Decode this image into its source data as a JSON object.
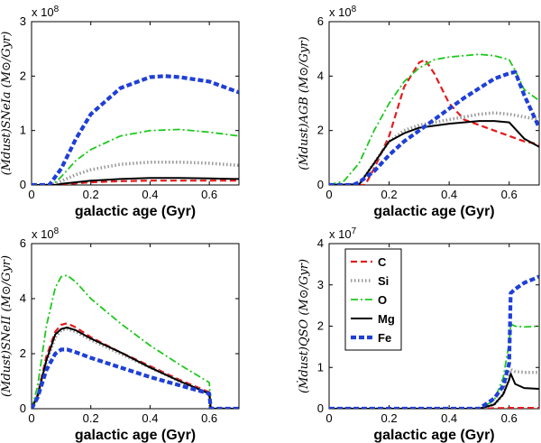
{
  "chart_data": [
    {
      "type": "line",
      "panel": "top-left",
      "ylabel": "(Ṁdust)SNeIa (M⊙/Gyr)",
      "xlabel": "galactic age (Gyr)",
      "xlim": [
        0,
        0.7
      ],
      "ylim": [
        0,
        3
      ],
      "multiplier": "x 10",
      "multiplier_exp": "8",
      "xticks": [
        "0",
        "0.2",
        "0.4",
        "0.6"
      ],
      "yticks": [
        "0",
        "1",
        "2",
        "3"
      ],
      "series": [
        {
          "name": "C",
          "color": "#e41a1c",
          "dash": "dash",
          "x": [
            0,
            0.08,
            0.1,
            0.2,
            0.3,
            0.4,
            0.5,
            0.6,
            0.7
          ],
          "y": [
            0,
            0,
            0.01,
            0.05,
            0.07,
            0.08,
            0.08,
            0.08,
            0.08
          ]
        },
        {
          "name": "Si",
          "color": "#999999",
          "dash": "dot",
          "x": [
            0,
            0.07,
            0.1,
            0.15,
            0.2,
            0.3,
            0.4,
            0.5,
            0.6,
            0.7
          ],
          "y": [
            0,
            0,
            0.07,
            0.19,
            0.28,
            0.38,
            0.42,
            0.42,
            0.4,
            0.36
          ]
        },
        {
          "name": "O",
          "color": "#1ec81e",
          "dash": "dashdot",
          "x": [
            0,
            0.07,
            0.1,
            0.15,
            0.2,
            0.3,
            0.4,
            0.5,
            0.6,
            0.7
          ],
          "y": [
            0,
            0,
            0.15,
            0.45,
            0.65,
            0.9,
            1.0,
            1.02,
            0.97,
            0.9
          ]
        },
        {
          "name": "Mg",
          "color": "#000000",
          "dash": "solid",
          "x": [
            0,
            0.08,
            0.1,
            0.2,
            0.3,
            0.4,
            0.5,
            0.6,
            0.7
          ],
          "y": [
            0,
            0,
            0.02,
            0.08,
            0.11,
            0.13,
            0.13,
            0.12,
            0.11
          ]
        },
        {
          "name": "Fe",
          "color": "#1f3fd6",
          "dash": "fe",
          "x": [
            0,
            0.06,
            0.1,
            0.15,
            0.2,
            0.3,
            0.4,
            0.45,
            0.5,
            0.6,
            0.7
          ],
          "y": [
            0,
            0,
            0.3,
            0.85,
            1.3,
            1.78,
            1.98,
            2.0,
            1.98,
            1.9,
            1.7
          ]
        }
      ]
    },
    {
      "type": "line",
      "panel": "top-right",
      "ylabel": "(Ṁdust)AGB (M⊙/Gyr)",
      "xlabel": "galactic age (Gyr)",
      "xlim": [
        0,
        0.7
      ],
      "ylim": [
        0,
        6
      ],
      "multiplier": "x 10",
      "multiplier_exp": "8",
      "xticks": [
        "0",
        "0.2",
        "0.4",
        "0.6"
      ],
      "yticks": [
        "0",
        "2",
        "4",
        "6"
      ],
      "series": [
        {
          "name": "C",
          "color": "#e41a1c",
          "dash": "dash",
          "x": [
            0,
            0.12,
            0.15,
            0.2,
            0.25,
            0.3,
            0.32,
            0.35,
            0.4,
            0.45,
            0.5,
            0.55,
            0.6,
            0.65,
            0.7
          ],
          "y": [
            0,
            0,
            0.6,
            1.8,
            3.6,
            4.5,
            4.6,
            4.1,
            3.0,
            2.4,
            2.2,
            2.0,
            1.8,
            1.6,
            1.5
          ]
        },
        {
          "name": "Si",
          "color": "#999999",
          "dash": "dot",
          "x": [
            0,
            0.1,
            0.15,
            0.2,
            0.25,
            0.3,
            0.4,
            0.5,
            0.55,
            0.6,
            0.65,
            0.7
          ],
          "y": [
            0,
            0.02,
            0.8,
            1.6,
            2.0,
            2.2,
            2.4,
            2.6,
            2.65,
            2.6,
            2.5,
            2.4
          ]
        },
        {
          "name": "O",
          "color": "#1ec81e",
          "dash": "dashdot",
          "x": [
            0,
            0.05,
            0.1,
            0.15,
            0.2,
            0.25,
            0.3,
            0.35,
            0.4,
            0.45,
            0.5,
            0.55,
            0.6,
            0.62,
            0.65,
            0.7
          ],
          "y": [
            0,
            0.15,
            0.8,
            2.0,
            3.0,
            3.8,
            4.3,
            4.6,
            4.7,
            4.75,
            4.8,
            4.75,
            4.6,
            4.2,
            3.5,
            3.1
          ]
        },
        {
          "name": "Mg",
          "color": "#000000",
          "dash": "solid",
          "x": [
            0,
            0.1,
            0.15,
            0.2,
            0.25,
            0.3,
            0.4,
            0.5,
            0.55,
            0.6,
            0.65,
            0.7
          ],
          "y": [
            0,
            0.02,
            0.8,
            1.6,
            1.9,
            2.1,
            2.25,
            2.35,
            2.35,
            2.3,
            1.7,
            1.4
          ]
        },
        {
          "name": "Fe",
          "color": "#1f3fd6",
          "dash": "fe",
          "x": [
            0,
            0.08,
            0.1,
            0.15,
            0.2,
            0.25,
            0.3,
            0.35,
            0.4,
            0.45,
            0.5,
            0.55,
            0.6,
            0.62,
            0.65,
            0.7
          ],
          "y": [
            0,
            0,
            0.1,
            0.5,
            1.1,
            1.6,
            2.0,
            2.4,
            2.8,
            3.2,
            3.55,
            3.9,
            4.1,
            4.15,
            3.3,
            2.1
          ]
        }
      ]
    },
    {
      "type": "line",
      "panel": "bottom-left",
      "ylabel": "(Ṁdust)SNeII (M⊙/Gyr)",
      "xlabel": "galactic age (Gyr)",
      "xlim": [
        0,
        0.7
      ],
      "ylim": [
        0,
        6
      ],
      "multiplier": "x 10",
      "multiplier_exp": "8",
      "xticks": [
        "0",
        "0.2",
        "0.4",
        "0.6"
      ],
      "yticks": [
        "0",
        "2",
        "4",
        "6"
      ],
      "series": [
        {
          "name": "C",
          "color": "#e41a1c",
          "dash": "dash",
          "x": [
            0,
            0.02,
            0.05,
            0.08,
            0.1,
            0.12,
            0.15,
            0.2,
            0.3,
            0.4,
            0.5,
            0.6,
            0.605,
            0.7
          ],
          "y": [
            0,
            0.5,
            1.9,
            2.8,
            3.05,
            3.1,
            2.95,
            2.6,
            2.05,
            1.55,
            1.05,
            0.6,
            0,
            0
          ]
        },
        {
          "name": "Si",
          "color": "#999999",
          "dash": "dot",
          "x": [
            0,
            0.02,
            0.05,
            0.08,
            0.1,
            0.12,
            0.15,
            0.2,
            0.3,
            0.4,
            0.5,
            0.6,
            0.605,
            0.7
          ],
          "y": [
            0,
            0.45,
            1.7,
            2.6,
            2.85,
            2.9,
            2.8,
            2.5,
            2.0,
            1.5,
            1.0,
            0.55,
            0,
            0
          ]
        },
        {
          "name": "O",
          "color": "#1ec81e",
          "dash": "dashdot",
          "x": [
            0,
            0.02,
            0.05,
            0.08,
            0.1,
            0.12,
            0.15,
            0.2,
            0.3,
            0.4,
            0.5,
            0.6,
            0.605,
            0.7
          ],
          "y": [
            0,
            0.8,
            3.0,
            4.4,
            4.8,
            4.85,
            4.6,
            4.0,
            3.1,
            2.3,
            1.6,
            0.95,
            0,
            0
          ]
        },
        {
          "name": "Mg",
          "color": "#000000",
          "dash": "solid",
          "x": [
            0,
            0.02,
            0.05,
            0.08,
            0.1,
            0.12,
            0.15,
            0.2,
            0.3,
            0.4,
            0.5,
            0.6,
            0.605,
            0.7
          ],
          "y": [
            0,
            0.45,
            1.75,
            2.7,
            2.9,
            2.95,
            2.85,
            2.55,
            2.05,
            1.5,
            1.0,
            0.55,
            0,
            0
          ]
        },
        {
          "name": "Fe",
          "color": "#1f3fd6",
          "dash": "fe",
          "x": [
            0,
            0.02,
            0.05,
            0.08,
            0.1,
            0.12,
            0.15,
            0.2,
            0.3,
            0.4,
            0.5,
            0.6,
            0.605,
            0.7
          ],
          "y": [
            0,
            0.4,
            1.4,
            2.0,
            2.15,
            2.15,
            2.05,
            1.85,
            1.5,
            1.15,
            0.85,
            0.55,
            0,
            0
          ]
        }
      ]
    },
    {
      "type": "line",
      "panel": "bottom-right",
      "ylabel": "(Ṁdust)QSO (M⊙/Gyr)",
      "xlabel": "galactic age (Gyr)",
      "xlim": [
        0,
        0.7
      ],
      "ylim": [
        0,
        4
      ],
      "multiplier": "x 10",
      "multiplier_exp": "7",
      "xticks": [
        "0",
        "0.2",
        "0.4",
        "0.6"
      ],
      "yticks": [
        "0",
        "1",
        "2",
        "3",
        "4"
      ],
      "legend": "top-left",
      "series": [
        {
          "name": "C",
          "color": "#e41a1c",
          "dash": "dash",
          "x": [
            0,
            0.5,
            0.55,
            0.6,
            0.65,
            0.7
          ],
          "y": [
            0,
            0,
            0.01,
            0.02,
            0.02,
            0.02
          ]
        },
        {
          "name": "Si",
          "color": "#999999",
          "dash": "dot",
          "x": [
            0,
            0.5,
            0.55,
            0.58,
            0.6,
            0.605,
            0.62,
            0.65,
            0.7
          ],
          "y": [
            0,
            0,
            0.1,
            0.35,
            0.8,
            0.95,
            0.9,
            0.88,
            0.88
          ]
        },
        {
          "name": "O",
          "color": "#1ec81e",
          "dash": "dashdot",
          "x": [
            0,
            0.5,
            0.55,
            0.58,
            0.6,
            0.605,
            0.62,
            0.65,
            0.7
          ],
          "y": [
            0,
            0,
            0.2,
            0.75,
            1.6,
            2.05,
            2.0,
            1.98,
            2.0
          ]
        },
        {
          "name": "Mg",
          "color": "#000000",
          "dash": "solid",
          "x": [
            0,
            0.5,
            0.55,
            0.58,
            0.6,
            0.605,
            0.62,
            0.65,
            0.7
          ],
          "y": [
            0,
            0,
            0.1,
            0.35,
            0.7,
            0.85,
            0.6,
            0.5,
            0.48
          ]
        },
        {
          "name": "Fe",
          "color": "#1f3fd6",
          "dash": "fe",
          "x": [
            0,
            0.5,
            0.55,
            0.58,
            0.6,
            0.605,
            0.62,
            0.65,
            0.7
          ],
          "y": [
            0,
            0,
            0.25,
            0.55,
            1.1,
            2.8,
            2.9,
            3.05,
            3.2
          ]
        }
      ]
    }
  ],
  "legend": {
    "entries": [
      "C",
      "Si",
      "O",
      "Mg",
      "Fe"
    ]
  }
}
